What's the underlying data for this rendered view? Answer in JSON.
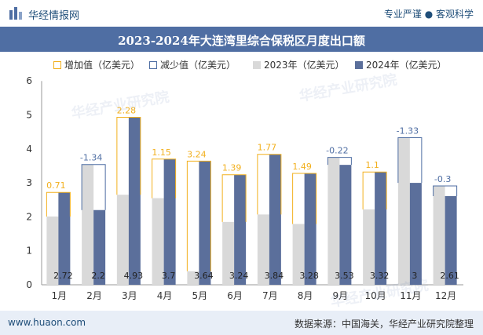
{
  "header": {
    "brand": "华经情报网",
    "slogan": "专业严谨 ● 客观科学"
  },
  "footer": {
    "site": "www.huaon.com",
    "source": "数据来源：中国海关，华经产业研究院整理"
  },
  "watermark": "华经产业研究院",
  "colors": {
    "increase": "#f2b01e",
    "decrease": "#4f6ea3",
    "y2023": "#d9d9d9",
    "y2024": "#5b6f9b",
    "titlebar": "#4f6ea3"
  },
  "chart_data": {
    "type": "bar",
    "title": "2023-2024年大连湾里综合保税区月度出口额",
    "legend": [
      "增加值（亿美元）",
      "减少值（亿美元）",
      "2023年（亿美元）",
      "2024年（亿美元）"
    ],
    "legend_position": "top",
    "categories": [
      "1月",
      "2月",
      "3月",
      "4月",
      "5月",
      "6月",
      "7月",
      "8月",
      "9月",
      "10月",
      "11月",
      "12月"
    ],
    "series": [
      {
        "name": "2023年（亿美元）",
        "values": [
          2.01,
          3.54,
          2.65,
          2.55,
          0.4,
          1.85,
          2.07,
          1.79,
          3.75,
          2.22,
          4.33,
          2.91
        ]
      },
      {
        "name": "2024年（亿美元）",
        "values": [
          2.72,
          2.2,
          4.93,
          3.7,
          3.64,
          3.24,
          3.84,
          3.28,
          3.53,
          3.32,
          3,
          2.61
        ]
      }
    ],
    "changes": [
      "0.71",
      "-1.34",
      "2.28",
      "1.15",
      "3.24",
      "1.39",
      "1.77",
      "1.49",
      "-0.22",
      "1.1",
      "-1.33",
      "-0.3"
    ],
    "value_labels_2024": [
      "2.72",
      "2.2",
      "4.93",
      "3.7",
      "3.64",
      "3.24",
      "3.84",
      "3.28",
      "3.53",
      "3.32",
      "3",
      "2.61"
    ],
    "y_ticks": [
      "0",
      "1",
      "2",
      "3",
      "4",
      "5",
      "6"
    ],
    "ylim": [
      0,
      6
    ],
    "grid": false
  }
}
